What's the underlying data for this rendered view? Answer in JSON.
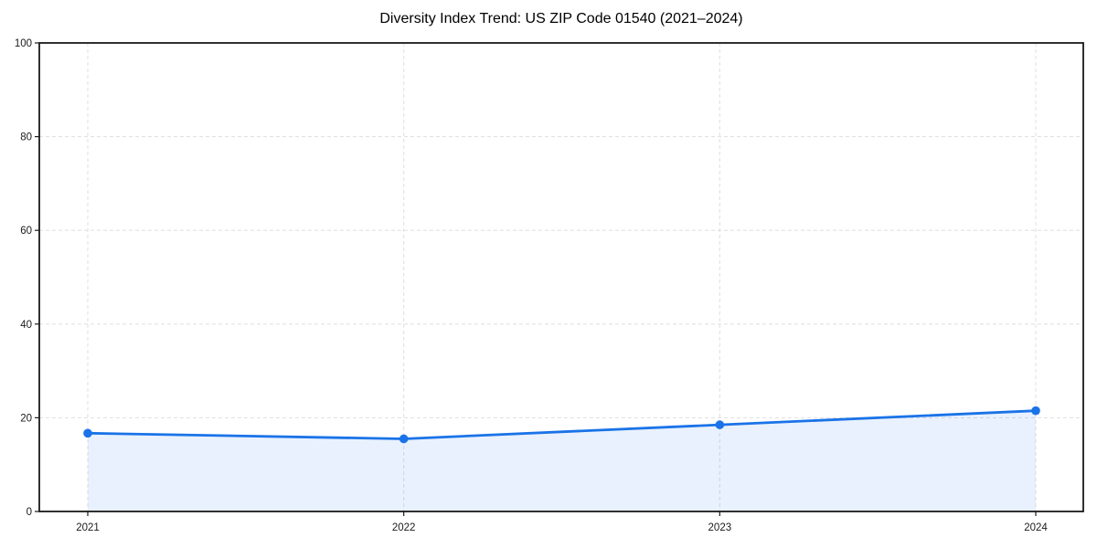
{
  "page": {
    "background": "#ffffff"
  },
  "chart_data": {
    "type": "area",
    "title": "Diversity Index Trend: US ZIP Code 01540 (2021–2024)",
    "categories": [
      "2021",
      "2022",
      "2023",
      "2024"
    ],
    "series": [
      {
        "name": "Diversity Index",
        "values": [
          16.7,
          15.5,
          18.5,
          21.5
        ]
      }
    ],
    "xlabel": "",
    "ylabel": "",
    "ylim": [
      0,
      100
    ],
    "yticks": [
      0,
      20,
      40,
      60,
      80,
      100
    ],
    "grid": true,
    "grid_style": "dashed",
    "legend": false,
    "colors": {
      "line": "#1a73e8",
      "marker": "#1a73e8",
      "fill": "rgba(26,115,232,0.10)",
      "grid": "#e2e2e2",
      "axis": "#1a1a1a",
      "tick_text": "#1a1a1a",
      "title_text": "#000000"
    }
  }
}
